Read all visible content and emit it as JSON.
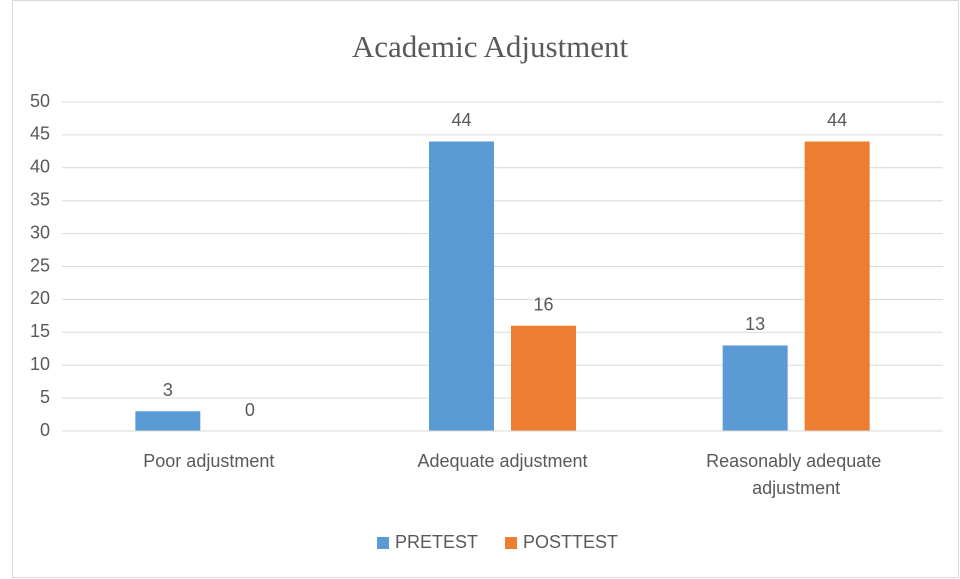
{
  "chart_data": {
    "type": "bar",
    "title": "Academic  Adjustment",
    "categories": [
      "Poor adjustment",
      "Adequate adjustment",
      "Reasonably adequate adjustment"
    ],
    "series": [
      {
        "name": "PRETEST",
        "color": "#5b9bd5",
        "values": [
          3,
          44,
          13
        ]
      },
      {
        "name": "POSTTEST",
        "color": "#ed7d31",
        "values": [
          0,
          16,
          44
        ]
      }
    ],
    "ylim": [
      0,
      50
    ],
    "yticks": [
      0,
      5,
      10,
      15,
      20,
      25,
      30,
      35,
      40,
      45,
      50
    ],
    "grid": true,
    "legend": "bottom"
  }
}
